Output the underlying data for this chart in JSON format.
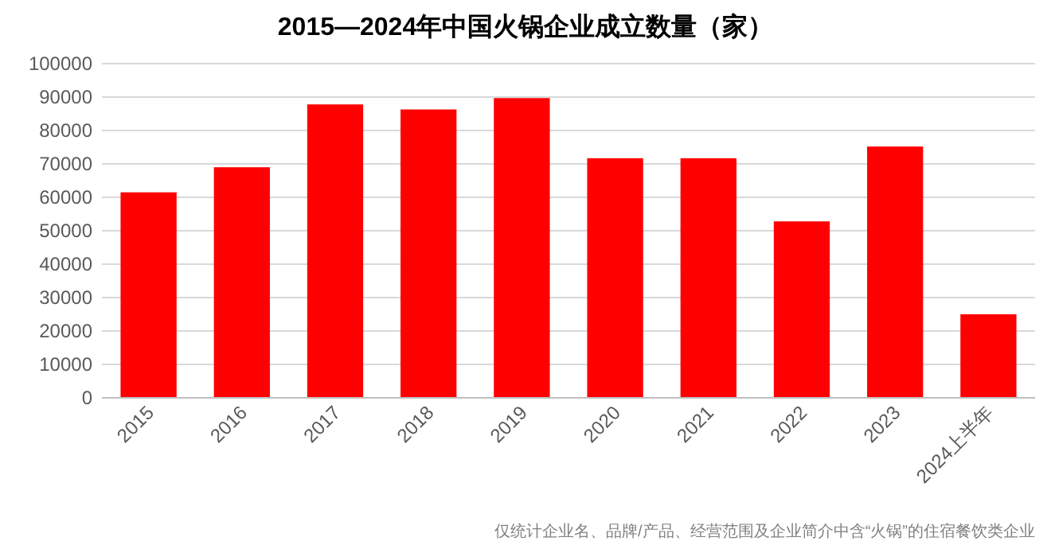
{
  "chart_data": {
    "type": "bar",
    "title": "2015—2024年中国火锅企业成立数量（家）",
    "categories": [
      "2015",
      "2016",
      "2017",
      "2018",
      "2019",
      "2020",
      "2021",
      "2022",
      "2023",
      "2024上半年"
    ],
    "values": [
      61500,
      69000,
      87800,
      86300,
      89700,
      71700,
      71700,
      52800,
      75200,
      25000
    ],
    "color": "#ff0000",
    "ylim": [
      0,
      100000
    ],
    "yticks": [
      0,
      10000,
      20000,
      30000,
      40000,
      50000,
      60000,
      70000,
      80000,
      90000,
      100000
    ],
    "grid": "y",
    "annotations": [
      "仅统计企业名、品牌/产品、经营范围及企业简介中含“火锅”的住宿餐饮类企业"
    ]
  }
}
